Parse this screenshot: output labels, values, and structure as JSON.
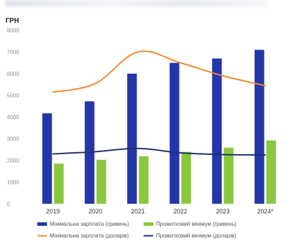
{
  "chart_data": {
    "type": "bar",
    "title": "",
    "unit_label": "ГРН",
    "categories": [
      "2019",
      "2020",
      "2021",
      "2022",
      "2023",
      "2024*"
    ],
    "ylim": [
      0,
      8000
    ],
    "yticks": [
      0,
      1000,
      2000,
      3000,
      4000,
      5000,
      6000,
      7000,
      8000
    ],
    "grid": false,
    "legend_position": "bottom",
    "series": [
      {
        "name": "Мінімальна зарплата (гривень)",
        "kind": "bar",
        "color": "#2437a8",
        "values": [
          4173,
          4723,
          6000,
          6500,
          6700,
          7100
        ]
      },
      {
        "name": "Прожитковий мінімум (гривень)",
        "kind": "bar",
        "color": "#8bc63f",
        "values": [
          1853,
          2027,
          2189,
          2393,
          2589,
          2920
        ]
      },
      {
        "name": "Мінімальна зарплата (доларів)",
        "kind": "line",
        "color": "#f08a2c",
        "values": [
          5150,
          5550,
          7000,
          6500,
          5900,
          5450
        ]
      },
      {
        "name": "Прожитковий мінімум (доларів)",
        "kind": "line",
        "color": "#1f2f6e",
        "values": [
          2300,
          2400,
          2550,
          2350,
          2270,
          2250
        ]
      }
    ]
  }
}
